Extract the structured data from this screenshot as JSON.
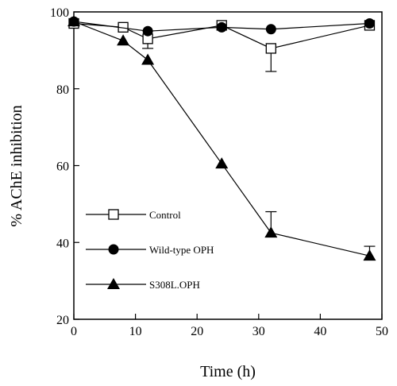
{
  "chart_data": {
    "type": "line",
    "xlabel": "Time (h)",
    "ylabel": "% AChE inhibition",
    "xlim": [
      0,
      50
    ],
    "ylim": [
      20,
      100
    ],
    "xticks": [
      0,
      10,
      20,
      30,
      40,
      50
    ],
    "yticks": [
      20,
      40,
      60,
      80,
      100
    ],
    "legend_position": "center-left",
    "grid": false,
    "series": [
      {
        "name": "Control",
        "marker": "open-square",
        "x": [
          0,
          8,
          12,
          24,
          32,
          48
        ],
        "y": [
          97,
          96,
          93,
          96.5,
          90.5,
          96.5
        ],
        "error": [
          0,
          0,
          2.5,
          0,
          6,
          0
        ]
      },
      {
        "name": "Wild-type OPH",
        "marker": "filled-circle",
        "x": [
          0,
          12,
          24,
          32,
          48
        ],
        "y": [
          97.5,
          95,
          96,
          95.5,
          97
        ],
        "error": [
          0,
          0,
          0,
          0,
          0
        ]
      },
      {
        "name": "S308L.OPH",
        "marker": "filled-triangle",
        "x": [
          0,
          8,
          12,
          24,
          32,
          48
        ],
        "y": [
          97.5,
          92.5,
          87.5,
          60.5,
          42.5,
          36.5
        ],
        "error": [
          0,
          0,
          0,
          0,
          5.5,
          2.5
        ]
      }
    ]
  }
}
